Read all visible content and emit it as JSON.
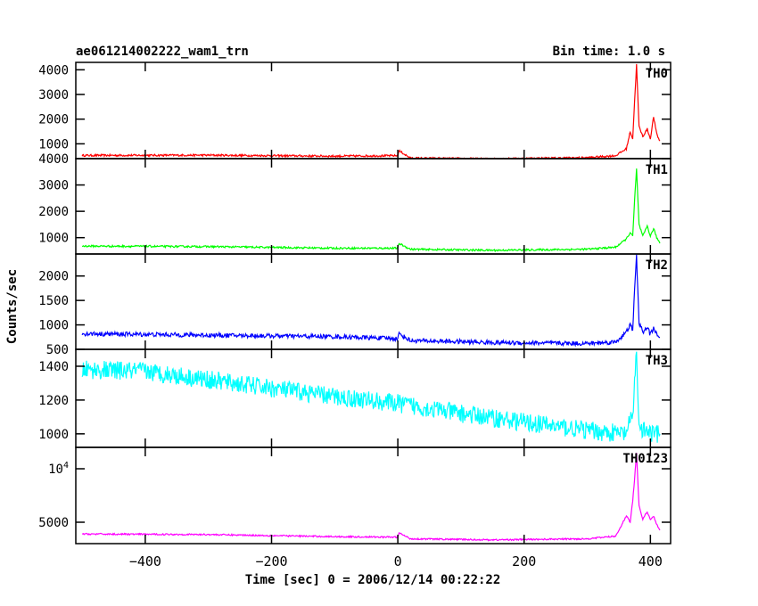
{
  "chart_data": {
    "type": "line",
    "title": "ae061214002222_wam1_trn",
    "subtitle": "Bin time: 1.0 s",
    "xlabel": "Time [sec] 0 = 2006/12/14 00:22:22",
    "ylabel": "Counts/sec",
    "xlim": [
      -510,
      432
    ],
    "xticks": [
      -400,
      -200,
      0,
      200,
      400
    ],
    "xtick_labels": [
      "−400",
      "−200",
      "0",
      "200",
      "400"
    ],
    "panels": [
      {
        "name": "TH0",
        "color": "#ff0000",
        "ylim": [
          400,
          4300
        ],
        "yticks": [
          1000,
          2000,
          3000,
          4000
        ],
        "ytick_labels": [
          "1000",
          "2000",
          "3000",
          "4000"
        ],
        "shape": [
          [
            -500,
            530
          ],
          [
            -300,
            540
          ],
          [
            -100,
            500
          ],
          [
            0,
            520
          ],
          [
            2,
            720
          ],
          [
            20,
            420
          ],
          [
            150,
            390
          ],
          [
            300,
            440
          ],
          [
            345,
            520
          ],
          [
            362,
            800
          ],
          [
            368,
            1500
          ],
          [
            372,
            1200
          ],
          [
            375,
            2700
          ],
          [
            378,
            4200
          ],
          [
            382,
            1700
          ],
          [
            388,
            1300
          ],
          [
            395,
            1600
          ],
          [
            400,
            1200
          ],
          [
            405,
            2100
          ],
          [
            410,
            1400
          ],
          [
            415,
            1100
          ]
        ],
        "noise": 40
      },
      {
        "name": "TH1",
        "color": "#00ff00",
        "ylim": [
          380,
          4000
        ],
        "yticks": [
          1000,
          2000,
          3000,
          4000
        ],
        "ytick_labels": [
          "1000",
          "2000",
          "3000",
          "4000"
        ],
        "shape": [
          [
            -500,
            680
          ],
          [
            -300,
            660
          ],
          [
            -100,
            600
          ],
          [
            0,
            600
          ],
          [
            2,
            780
          ],
          [
            20,
            560
          ],
          [
            150,
            520
          ],
          [
            300,
            560
          ],
          [
            345,
            640
          ],
          [
            362,
            950
          ],
          [
            368,
            1200
          ],
          [
            372,
            1050
          ],
          [
            375,
            2400
          ],
          [
            378,
            3600
          ],
          [
            382,
            1500
          ],
          [
            388,
            1050
          ],
          [
            395,
            1450
          ],
          [
            400,
            1050
          ],
          [
            405,
            1350
          ],
          [
            410,
            1000
          ],
          [
            415,
            800
          ]
        ],
        "noise": 35
      },
      {
        "name": "TH2",
        "color": "#0000ff",
        "ylim": [
          500,
          2450
        ],
        "yticks": [
          500,
          1000,
          1500,
          2000
        ],
        "ytick_labels": [
          "500",
          "1000",
          "1500",
          "2000"
        ],
        "shape": [
          [
            -500,
            820
          ],
          [
            -300,
            790
          ],
          [
            -100,
            760
          ],
          [
            0,
            720
          ],
          [
            2,
            820
          ],
          [
            20,
            680
          ],
          [
            150,
            640
          ],
          [
            300,
            620
          ],
          [
            345,
            650
          ],
          [
            362,
            850
          ],
          [
            368,
            1000
          ],
          [
            372,
            900
          ],
          [
            375,
            1700
          ],
          [
            378,
            2400
          ],
          [
            382,
            1050
          ],
          [
            388,
            850
          ],
          [
            395,
            950
          ],
          [
            400,
            800
          ],
          [
            405,
            950
          ],
          [
            410,
            800
          ],
          [
            415,
            700
          ]
        ],
        "noise": 45
      },
      {
        "name": "TH3",
        "color": "#00ffff",
        "ylim": [
          920,
          1500
        ],
        "yticks": [
          1000,
          1200,
          1400
        ],
        "ytick_labels": [
          "1000",
          "1200",
          "1400"
        ],
        "shape": [
          [
            -500,
            1380
          ],
          [
            -400,
            1370
          ],
          [
            -300,
            1320
          ],
          [
            -200,
            1270
          ],
          [
            -100,
            1220
          ],
          [
            0,
            1180
          ],
          [
            100,
            1120
          ],
          [
            200,
            1070
          ],
          [
            300,
            1020
          ],
          [
            360,
            1000
          ],
          [
            372,
            1100
          ],
          [
            378,
            1500
          ],
          [
            382,
            1030
          ],
          [
            400,
            1000
          ],
          [
            415,
            1000
          ]
        ],
        "noise": 55
      },
      {
        "name": "TH0123",
        "color": "#ff00ff",
        "ylim": [
          3000,
          12000
        ],
        "yticks": [
          5000,
          10000
        ],
        "ytick_labels": [
          "5000",
          "10^4"
        ],
        "shape": [
          [
            -500,
            3900
          ],
          [
            -300,
            3850
          ],
          [
            -100,
            3650
          ],
          [
            0,
            3600
          ],
          [
            2,
            4000
          ],
          [
            20,
            3450
          ],
          [
            150,
            3350
          ],
          [
            300,
            3450
          ],
          [
            345,
            3700
          ],
          [
            362,
            5600
          ],
          [
            368,
            5000
          ],
          [
            372,
            7000
          ],
          [
            375,
            9000
          ],
          [
            378,
            11500
          ],
          [
            382,
            6500
          ],
          [
            388,
            5300
          ],
          [
            395,
            6000
          ],
          [
            400,
            5200
          ],
          [
            405,
            5600
          ],
          [
            410,
            4800
          ],
          [
            415,
            4200
          ]
        ],
        "noise": 70
      }
    ]
  }
}
